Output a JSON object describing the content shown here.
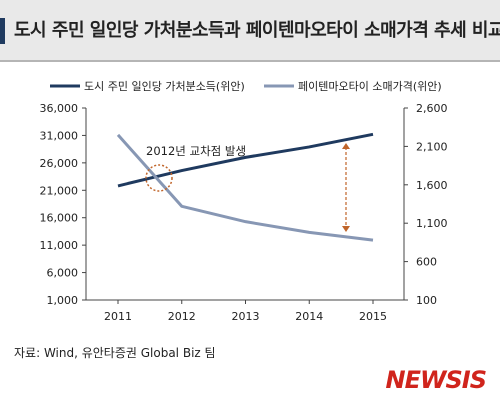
{
  "header": {
    "title": "도시 주민 일인당 가처분소득과 페이텐마오타이 소매가격 추세 비교"
  },
  "chart_data": {
    "type": "line",
    "x": [
      "2011",
      "2012",
      "2013",
      "2014",
      "2015"
    ],
    "series": [
      {
        "name": "도시 주민 일인당 가처분소득(위안)",
        "axis": "left",
        "color": "#1f3a5f",
        "values": [
          21800,
          24600,
          27000,
          28900,
          31200
        ]
      },
      {
        "name": "페이텐마오타이 소매가격(위안)",
        "axis": "right",
        "color": "#8797b4",
        "values": [
          2250,
          1320,
          1120,
          980,
          880
        ]
      }
    ],
    "y_left": {
      "min": 1000,
      "max": 36000,
      "ticks": [
        "1,000",
        "6,000",
        "11,000",
        "16,000",
        "21,000",
        "26,000",
        "31,000",
        "36,000"
      ]
    },
    "y_right": {
      "min": 100,
      "max": 2600,
      "ticks": [
        "100",
        "600",
        "1,100",
        "1,600",
        "2,100",
        "2,600"
      ]
    },
    "annotation": "2012년 교차점 발생",
    "grid": false,
    "legend_position": "top"
  },
  "source": "자료: Wind, 유안타증권 Global Biz 팀",
  "watermark": "NEWSIS"
}
